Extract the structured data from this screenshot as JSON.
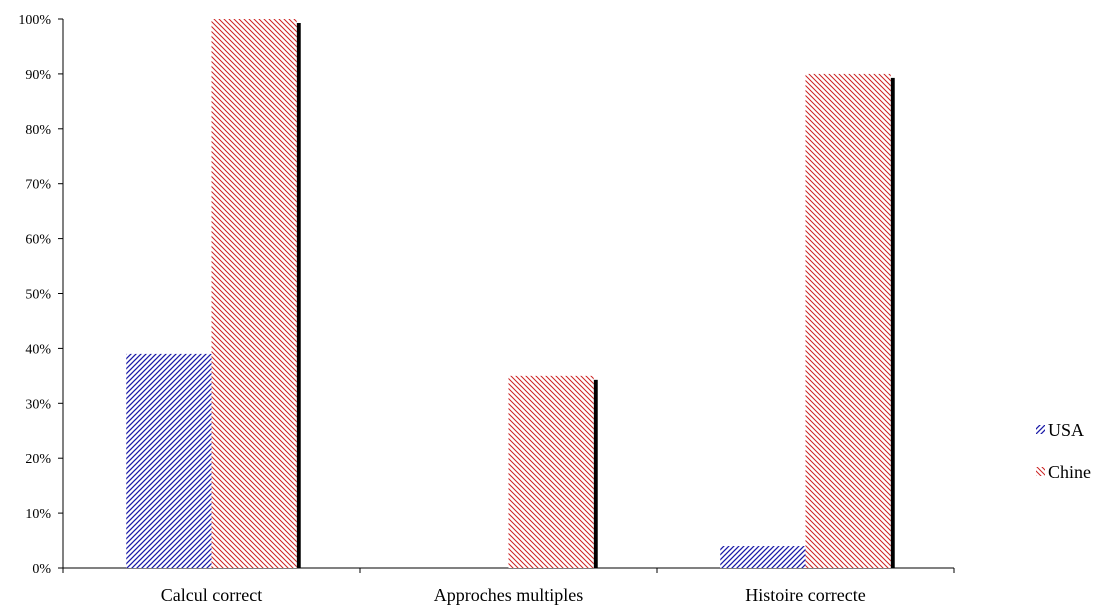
{
  "chart_data": {
    "type": "bar",
    "title": "",
    "xlabel": "",
    "ylabel": "",
    "categories": [
      "Calcul correct",
      "Approches multiples",
      "Histoire correcte"
    ],
    "series": [
      {
        "name": "USA",
        "values": [
          39,
          0,
          4
        ],
        "color": "#1a1aa8",
        "pattern": "diagonal-up"
      },
      {
        "name": "Chine",
        "values": [
          100,
          35,
          90
        ],
        "color": "#cc2222",
        "pattern": "diagonal-down"
      }
    ],
    "ylim": [
      0,
      100
    ],
    "yticks": [
      "0%",
      "10%",
      "20%",
      "30%",
      "40%",
      "50%",
      "60%",
      "70%",
      "80%",
      "90%",
      "100%"
    ],
    "grid": false,
    "legend_position": "right"
  }
}
